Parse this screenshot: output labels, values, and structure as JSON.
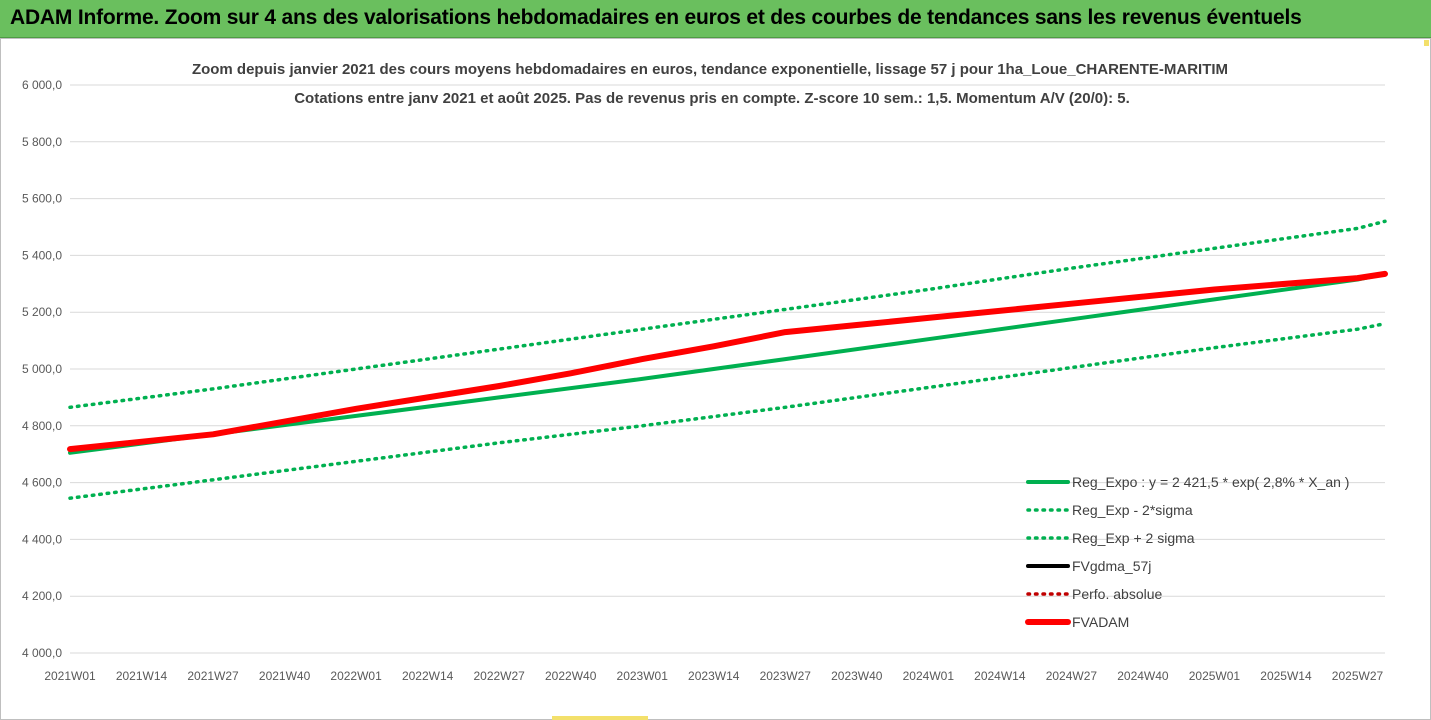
{
  "banner": {
    "text": "ADAM Informe. Zoom sur 4 ans des valorisations hebdomadaires en euros et des courbes de tendances sans les revenus éventuels"
  },
  "chart_data": {
    "type": "line",
    "title": "Zoom depuis janvier 2021 des cours moyens hebdomadaires en euros, tendance exponentielle, lissage 57 j pour 1ha_Loue_CHARENTE-MARITIM",
    "subtitle": "Cotations entre janv 2021 et août 2025.  Pas de revenus pris en compte. Z-score 10 sem.: 1,5. Momentum A/V (20/0): 5.",
    "xlabel": "",
    "ylabel": "",
    "ylim": [
      4000,
      6000
    ],
    "y_ticks": [
      "6 000,0",
      "5 800,0",
      "5 600,0",
      "5 400,0",
      "5 200,0",
      "5 000,0",
      "4 800,0",
      "4 600,0",
      "4 400,0",
      "4 200,0",
      "4 000,0"
    ],
    "x_ticks": [
      "2021W01",
      "2021W14",
      "2021W27",
      "2021W40",
      "2022W01",
      "2022W14",
      "2022W27",
      "2022W40",
      "2023W01",
      "2023W14",
      "2023W27",
      "2023W40",
      "2024W01",
      "2024W14",
      "2024W27",
      "2024W40",
      "2025W01",
      "2025W14",
      "2025W27"
    ],
    "grid": true,
    "legend_position": "bottom-right",
    "series": [
      {
        "name": "Reg_Expo : y = 2 421,5 * exp( 2,8% *  X_an )",
        "color": "#00b050",
        "style": "solid",
        "x": [
          "2021W01",
          "2021W27",
          "2022W01",
          "2022W27",
          "2023W01",
          "2023W27",
          "2024W01",
          "2024W27",
          "2025W01",
          "2025W27",
          "2025W32"
        ],
        "values": [
          4705,
          4770,
          4835,
          4900,
          4965,
          5035,
          5105,
          5175,
          5245,
          5315,
          5335
        ]
      },
      {
        "name": "Reg_Exp - 2*sigma",
        "color": "#00b050",
        "style": "dotted",
        "x": [
          "2021W01",
          "2021W27",
          "2022W01",
          "2022W27",
          "2023W01",
          "2023W27",
          "2024W01",
          "2024W27",
          "2025W01",
          "2025W27",
          "2025W32"
        ],
        "values": [
          4545,
          4610,
          4675,
          4740,
          4800,
          4865,
          4935,
          5005,
          5075,
          5140,
          5160
        ]
      },
      {
        "name": "Reg_Exp + 2 sigma",
        "color": "#00b050",
        "style": "dotted",
        "x": [
          "2021W01",
          "2021W27",
          "2022W01",
          "2022W27",
          "2023W01",
          "2023W27",
          "2024W01",
          "2024W27",
          "2025W01",
          "2025W27",
          "2025W32"
        ],
        "values": [
          4865,
          4930,
          5000,
          5070,
          5140,
          5210,
          5280,
          5355,
          5425,
          5495,
          5520
        ]
      },
      {
        "name": "FVgdma_57j",
        "color": "#000000",
        "style": "solid",
        "x": [
          "2021W01",
          "2021W27",
          "2022W01",
          "2022W27",
          "2022W40",
          "2023W01",
          "2023W14",
          "2023W27",
          "2023W40",
          "2024W01",
          "2024W27",
          "2025W01",
          "2025W27",
          "2025W32"
        ],
        "values": [
          4718,
          4770,
          4860,
          4940,
          4985,
          5035,
          5080,
          5130,
          5155,
          5180,
          5230,
          5280,
          5320,
          5335
        ]
      },
      {
        "name": "Perfo. absolue",
        "color": "#c00000",
        "style": "dotted",
        "x": [],
        "values": []
      },
      {
        "name": "FVADAM",
        "color": "#ff0000",
        "style": "solid-thick",
        "x": [
          "2021W01",
          "2021W27",
          "2022W01",
          "2022W27",
          "2022W40",
          "2023W01",
          "2023W14",
          "2023W27",
          "2023W40",
          "2024W01",
          "2024W27",
          "2025W01",
          "2025W27",
          "2025W32"
        ],
        "values": [
          4718,
          4770,
          4860,
          4940,
          4985,
          5035,
          5080,
          5130,
          5155,
          5180,
          5230,
          5280,
          5320,
          5335
        ]
      }
    ]
  }
}
